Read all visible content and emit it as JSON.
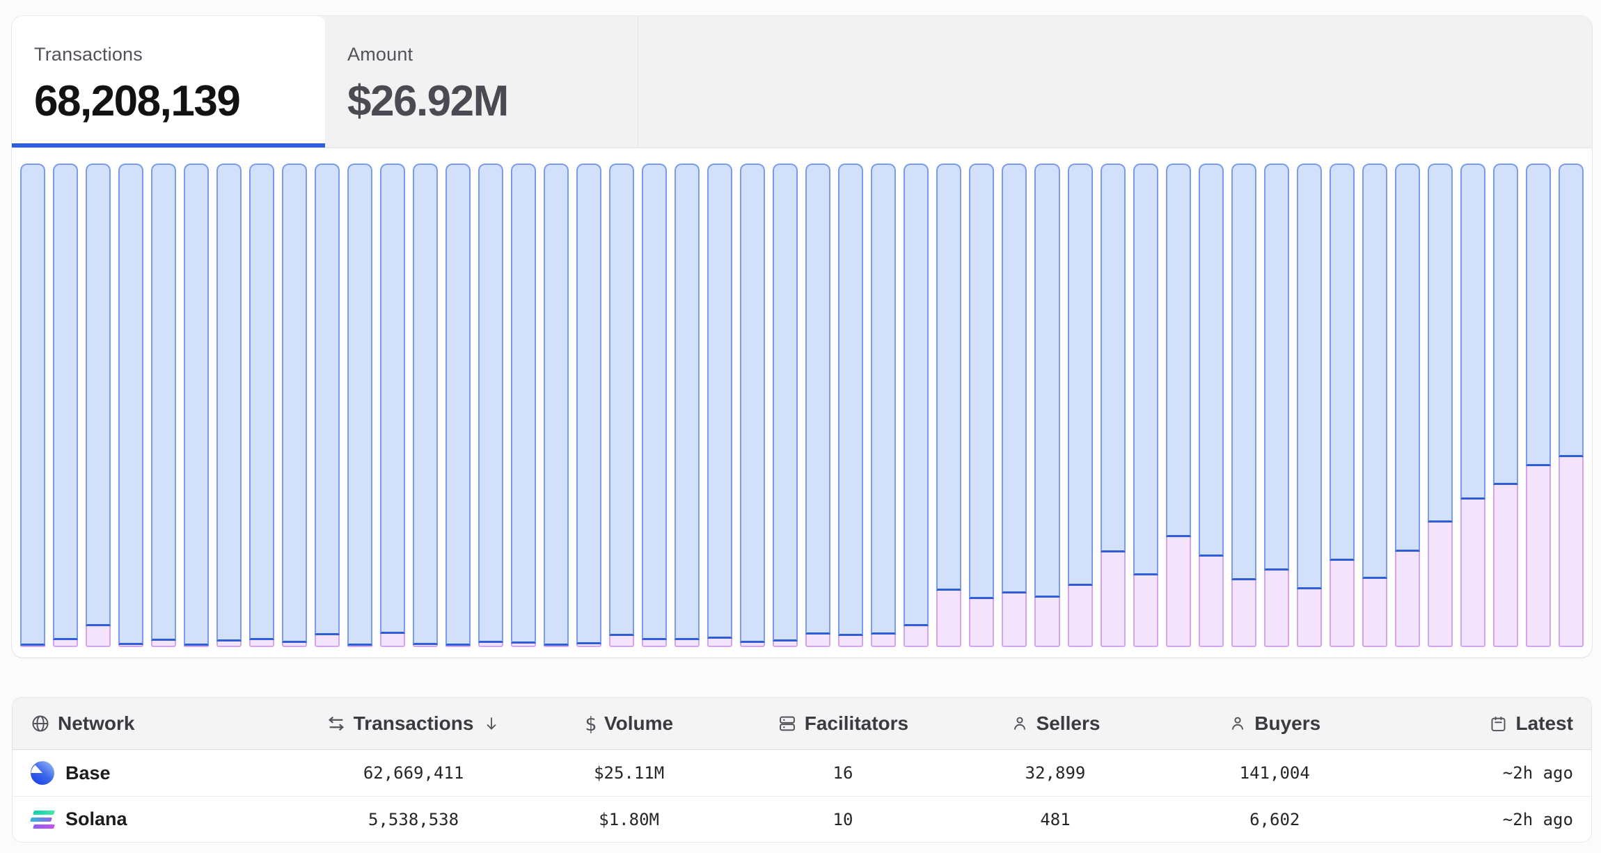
{
  "tabs": {
    "transactions": {
      "label": "Transactions",
      "value": "68,208,139"
    },
    "amount": {
      "label": "Amount",
      "value": "$26.92M"
    }
  },
  "chart_data": {
    "type": "bar",
    "subtype": "stacked-100-percent",
    "orientation": "vertical",
    "bar_count": 48,
    "x": "time buckets (unlabeled)",
    "ylim": [
      0,
      100
    ],
    "grid": false,
    "legend": "none",
    "axes": "none",
    "series": [
      {
        "name": "Base",
        "fill": "#d3e0f9",
        "border": "#7b9cee",
        "divider": "#2e5ed9",
        "values_pct": [
          99.7,
          98.6,
          95.7,
          99.6,
          98.7,
          99.7,
          98.8,
          98.6,
          99.1,
          97.6,
          99.8,
          97.3,
          99.6,
          99.7,
          99.1,
          99.3,
          99.8,
          99.4,
          97.7,
          98.6,
          98.6,
          98.3,
          99.1,
          98.8,
          97.4,
          97.7,
          97.4,
          95.7,
          88.3,
          90.1,
          88.9,
          89.8,
          87.3,
          80.4,
          85.2,
          77.3,
          81.3,
          86.2,
          84.2,
          88.1,
          82.2,
          85.9,
          80.3,
          74.2,
          69.5,
          66.5,
          62.6,
          60.7
        ]
      },
      {
        "name": "Solana",
        "fill": "#f3e3fc",
        "border": "#d5a4ef",
        "values_pct": [
          0.3,
          1.4,
          4.3,
          0.4,
          1.3,
          0.3,
          1.2,
          1.4,
          0.9,
          2.4,
          0.2,
          2.7,
          0.4,
          0.3,
          0.9,
          0.7,
          0.2,
          0.6,
          2.3,
          1.4,
          1.4,
          1.7,
          0.9,
          1.2,
          2.6,
          2.3,
          2.6,
          4.3,
          11.7,
          9.9,
          11.1,
          10.2,
          12.7,
          19.6,
          14.8,
          22.7,
          18.7,
          13.8,
          15.8,
          11.9,
          17.8,
          14.1,
          19.7,
          25.8,
          30.5,
          33.5,
          37.4,
          39.3
        ]
      }
    ]
  },
  "table": {
    "columns": [
      {
        "label": "Network",
        "icon": "globe"
      },
      {
        "label": "Transactions",
        "icon": "swap-arrows",
        "sort": "↓"
      },
      {
        "label": "Volume",
        "icon": "dollar",
        "dollar_glyph": "$"
      },
      {
        "label": "Facilitators",
        "icon": "stack"
      },
      {
        "label": "Sellers",
        "icon": "person"
      },
      {
        "label": "Buyers",
        "icon": "person"
      },
      {
        "label": "Latest",
        "icon": "calendar"
      }
    ],
    "rows": [
      {
        "network": "Base",
        "transactions": "62,669,411",
        "volume": "$25.11M",
        "facilitators": "16",
        "sellers": "32,899",
        "buyers": "141,004",
        "latest": "~2h ago"
      },
      {
        "network": "Solana",
        "transactions": "5,538,538",
        "volume": "$1.80M",
        "facilitators": "10",
        "sellers": "481",
        "buyers": "6,602",
        "latest": "~2h ago"
      }
    ]
  },
  "colors": {
    "accent_blue": "#2e5ed9",
    "bar_base_fill": "#d3e0f9",
    "bar_solana_fill": "#f3e3fc",
    "page_bg": "#fbfbfb",
    "strip_bg": "#f2f2f3",
    "header_bg": "#f4f4f5"
  }
}
